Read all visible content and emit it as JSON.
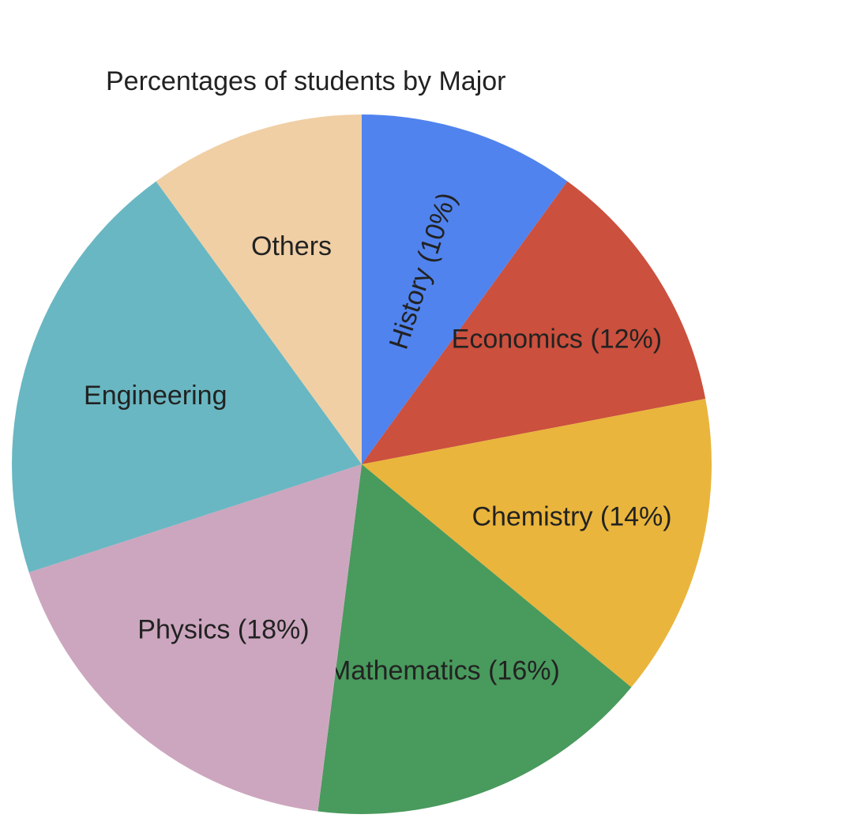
{
  "chart_data": {
    "type": "pie",
    "title": "Percentages of students by Major",
    "start_angle_deg": 0,
    "direction": "clockwise",
    "slices": [
      {
        "label": "History (10%)",
        "value": 10,
        "color": "#5083EE",
        "label_rotate": true
      },
      {
        "label": "Economics (12%)",
        "value": 12,
        "color": "#CB503D"
      },
      {
        "label": "Chemistry (14%)",
        "value": 14,
        "color": "#E9B53C"
      },
      {
        "label": "Mathematics (16%)",
        "value": 16,
        "color": "#499A5D"
      },
      {
        "label": "Physics (18%)",
        "value": 18,
        "color": "#CCA6BE"
      },
      {
        "label": "Engineering",
        "value": 20,
        "color": "#69B7C2"
      },
      {
        "label": "Others",
        "value": 10,
        "color": "#F0CFA5"
      }
    ]
  }
}
